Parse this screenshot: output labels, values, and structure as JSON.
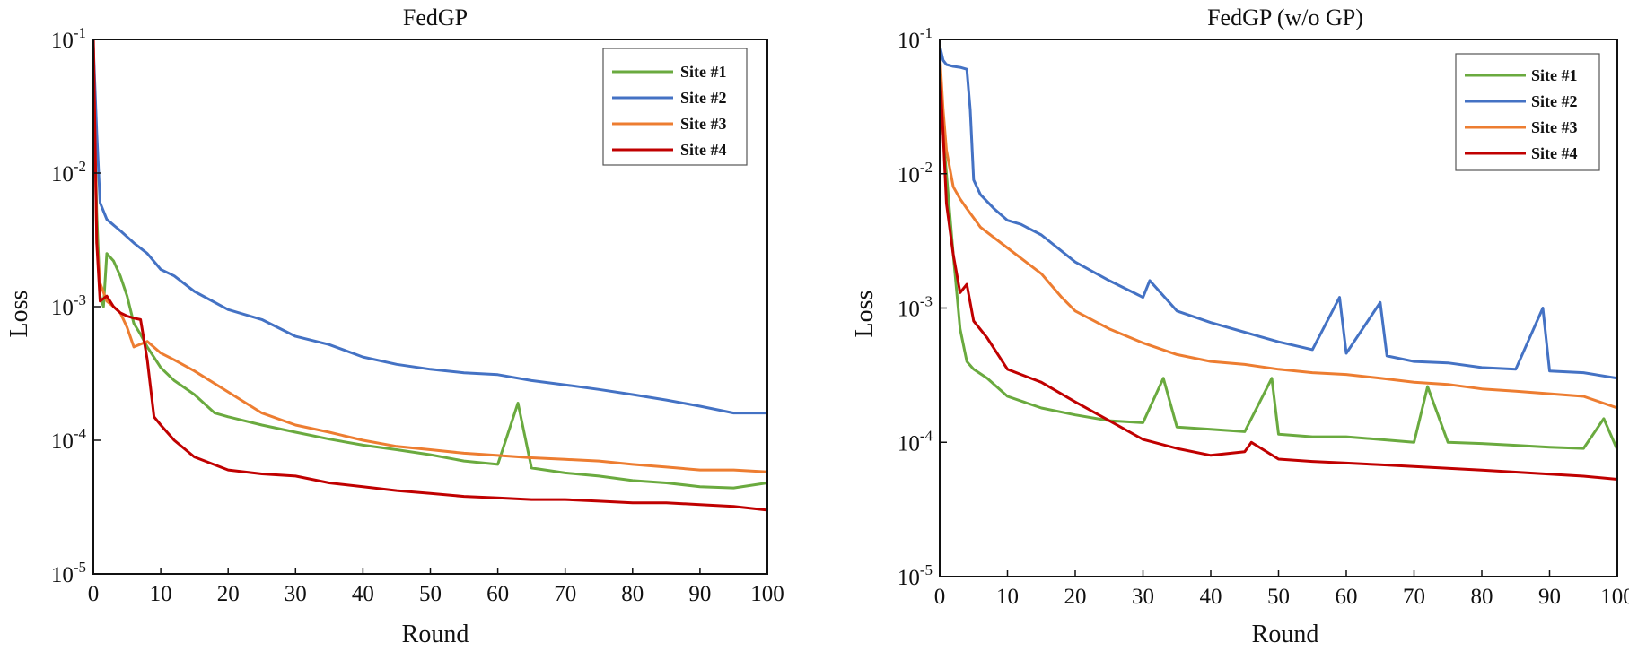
{
  "chart_data": [
    {
      "type": "line",
      "title": "FedGP",
      "xlabel": "Round",
      "ylabel": "Loss",
      "y_scale": "log",
      "xlim": [
        0,
        100
      ],
      "ylim": [
        1e-05,
        0.1
      ],
      "x_ticks": [
        "0",
        "10",
        "20",
        "30",
        "40",
        "50",
        "60",
        "70",
        "80",
        "90",
        "100"
      ],
      "y_ticks": [
        {
          "base": "10",
          "exp": "-1"
        },
        {
          "base": "10",
          "exp": "-2"
        },
        {
          "base": "10",
          "exp": "-3"
        },
        {
          "base": "10",
          "exp": "-4"
        },
        {
          "base": "10",
          "exp": "-5"
        }
      ],
      "legend_position": "top-right",
      "grid": false,
      "series": [
        {
          "name": "Site #1",
          "color": "#6aaa3f",
          "points": [
            [
              0,
              0.06
            ],
            [
              0.5,
              0.005
            ],
            [
              1,
              0.0012
            ],
            [
              1.5,
              0.001
            ],
            [
              2,
              0.0025
            ],
            [
              3,
              0.0022
            ],
            [
              4,
              0.0017
            ],
            [
              5,
              0.0012
            ],
            [
              6,
              0.00075
            ],
            [
              7,
              0.00062
            ],
            [
              8,
              0.0005
            ],
            [
              10,
              0.00035
            ],
            [
              12,
              0.00028
            ],
            [
              15,
              0.00022
            ],
            [
              18,
              0.00016
            ],
            [
              20,
              0.00015
            ],
            [
              25,
              0.00013
            ],
            [
              30,
              0.000115
            ],
            [
              35,
              0.000102
            ],
            [
              40,
              9.2e-05
            ],
            [
              45,
              8.5e-05
            ],
            [
              50,
              7.8e-05
            ],
            [
              55,
              7e-05
            ],
            [
              60,
              6.6e-05
            ],
            [
              63,
              0.00019
            ],
            [
              65,
              6.2e-05
            ],
            [
              70,
              5.7e-05
            ],
            [
              75,
              5.4e-05
            ],
            [
              80,
              5e-05
            ],
            [
              85,
              4.8e-05
            ],
            [
              90,
              4.5e-05
            ],
            [
              95,
              4.4e-05
            ],
            [
              100,
              4.8e-05
            ]
          ]
        },
        {
          "name": "Site #2",
          "color": "#4472c4",
          "points": [
            [
              0,
              0.09
            ],
            [
              0.5,
              0.02
            ],
            [
              1,
              0.006
            ],
            [
              2,
              0.0045
            ],
            [
              4,
              0.0037
            ],
            [
              6,
              0.003
            ],
            [
              8,
              0.0025
            ],
            [
              10,
              0.0019
            ],
            [
              12,
              0.0017
            ],
            [
              15,
              0.0013
            ],
            [
              20,
              0.00095
            ],
            [
              25,
              0.0008
            ],
            [
              30,
              0.0006
            ],
            [
              35,
              0.00052
            ],
            [
              40,
              0.00042
            ],
            [
              45,
              0.00037
            ],
            [
              50,
              0.00034
            ],
            [
              55,
              0.00032
            ],
            [
              60,
              0.00031
            ],
            [
              65,
              0.00028
            ],
            [
              70,
              0.00026
            ],
            [
              75,
              0.00024
            ],
            [
              80,
              0.00022
            ],
            [
              85,
              0.0002
            ],
            [
              90,
              0.00018
            ],
            [
              95,
              0.00016
            ],
            [
              100,
              0.00016
            ]
          ]
        },
        {
          "name": "Site #3",
          "color": "#ed7d31",
          "points": [
            [
              0,
              0.09
            ],
            [
              0.5,
              0.003
            ],
            [
              1,
              0.0015
            ],
            [
              2,
              0.0011
            ],
            [
              3,
              0.001
            ],
            [
              4,
              0.0009
            ],
            [
              5,
              0.0007
            ],
            [
              6,
              0.0005
            ],
            [
              8,
              0.00055
            ],
            [
              10,
              0.00045
            ],
            [
              12,
              0.0004
            ],
            [
              15,
              0.00033
            ],
            [
              20,
              0.00023
            ],
            [
              25,
              0.00016
            ],
            [
              30,
              0.00013
            ],
            [
              35,
              0.000115
            ],
            [
              40,
              0.0001
            ],
            [
              45,
              9e-05
            ],
            [
              50,
              8.5e-05
            ],
            [
              55,
              8e-05
            ],
            [
              60,
              7.7e-05
            ],
            [
              65,
              7.4e-05
            ],
            [
              70,
              7.2e-05
            ],
            [
              75,
              7e-05
            ],
            [
              80,
              6.6e-05
            ],
            [
              85,
              6.3e-05
            ],
            [
              90,
              6e-05
            ],
            [
              95,
              6e-05
            ],
            [
              100,
              5.8e-05
            ]
          ]
        },
        {
          "name": "Site #4",
          "color": "#c00000",
          "points": [
            [
              0,
              0.11
            ],
            [
              0.5,
              0.003
            ],
            [
              1,
              0.0011
            ],
            [
              2,
              0.0012
            ],
            [
              3,
              0.001
            ],
            [
              4,
              0.0009
            ],
            [
              5,
              0.00085
            ],
            [
              6,
              0.00082
            ],
            [
              7,
              0.0008
            ],
            [
              8,
              0.0004
            ],
            [
              9,
              0.00015
            ],
            [
              10,
              0.00013
            ],
            [
              12,
              0.0001
            ],
            [
              15,
              7.5e-05
            ],
            [
              20,
              6e-05
            ],
            [
              25,
              5.6e-05
            ],
            [
              30,
              5.4e-05
            ],
            [
              35,
              4.8e-05
            ],
            [
              40,
              4.5e-05
            ],
            [
              45,
              4.2e-05
            ],
            [
              50,
              4e-05
            ],
            [
              55,
              3.8e-05
            ],
            [
              60,
              3.7e-05
            ],
            [
              65,
              3.6e-05
            ],
            [
              70,
              3.6e-05
            ],
            [
              75,
              3.5e-05
            ],
            [
              80,
              3.4e-05
            ],
            [
              85,
              3.4e-05
            ],
            [
              90,
              3.3e-05
            ],
            [
              95,
              3.2e-05
            ],
            [
              100,
              3e-05
            ]
          ]
        }
      ]
    },
    {
      "type": "line",
      "title": "FedGP (w/o GP)",
      "xlabel": "Round",
      "ylabel": "Loss",
      "y_scale": "log",
      "xlim": [
        0,
        100
      ],
      "ylim": [
        1e-05,
        0.1
      ],
      "x_ticks": [
        "0",
        "10",
        "20",
        "30",
        "40",
        "50",
        "60",
        "70",
        "80",
        "90",
        "100"
      ],
      "y_ticks": [
        {
          "base": "10",
          "exp": "-1"
        },
        {
          "base": "10",
          "exp": "-2"
        },
        {
          "base": "10",
          "exp": "-3"
        },
        {
          "base": "10",
          "exp": "-4"
        },
        {
          "base": "10",
          "exp": "-5"
        }
      ],
      "legend_position": "top-right",
      "grid": false,
      "series": [
        {
          "name": "Site #1",
          "color": "#6aaa3f",
          "points": [
            [
              0,
              0.08
            ],
            [
              0.5,
              0.02
            ],
            [
              1,
              0.01
            ],
            [
              2,
              0.0025
            ],
            [
              3,
              0.0007
            ],
            [
              4,
              0.0004
            ],
            [
              5,
              0.00035
            ],
            [
              7,
              0.0003
            ],
            [
              10,
              0.00022
            ],
            [
              15,
              0.00018
            ],
            [
              20,
              0.00016
            ],
            [
              25,
              0.000145
            ],
            [
              30,
              0.00014
            ],
            [
              33,
              0.0003
            ],
            [
              35,
              0.00013
            ],
            [
              40,
              0.000125
            ],
            [
              45,
              0.00012
            ],
            [
              49,
              0.0003
            ],
            [
              50,
              0.000115
            ],
            [
              55,
              0.00011
            ],
            [
              60,
              0.00011
            ],
            [
              65,
              0.000105
            ],
            [
              70,
              0.0001
            ],
            [
              72,
              0.00026
            ],
            [
              75,
              0.0001
            ],
            [
              80,
              9.8e-05
            ],
            [
              85,
              9.5e-05
            ],
            [
              90,
              9.2e-05
            ],
            [
              95,
              9e-05
            ],
            [
              98,
              0.00015
            ],
            [
              100,
              8.8e-05
            ]
          ]
        },
        {
          "name": "Site #2",
          "color": "#4472c4",
          "points": [
            [
              0,
              0.09
            ],
            [
              0.5,
              0.07
            ],
            [
              1,
              0.065
            ],
            [
              2,
              0.063
            ],
            [
              3,
              0.062
            ],
            [
              4,
              0.06
            ],
            [
              4.5,
              0.03
            ],
            [
              5,
              0.009
            ],
            [
              6,
              0.007
            ],
            [
              8,
              0.0055
            ],
            [
              10,
              0.0045
            ],
            [
              12,
              0.0042
            ],
            [
              15,
              0.0035
            ],
            [
              20,
              0.0022
            ],
            [
              25,
              0.0016
            ],
            [
              30,
              0.0012
            ],
            [
              31,
              0.0016
            ],
            [
              35,
              0.00095
            ],
            [
              40,
              0.00078
            ],
            [
              45,
              0.00066
            ],
            [
              50,
              0.00056
            ],
            [
              55,
              0.00049
            ],
            [
              59,
              0.0012
            ],
            [
              60,
              0.00046
            ],
            [
              65,
              0.0011
            ],
            [
              66,
              0.00044
            ],
            [
              70,
              0.0004
            ],
            [
              75,
              0.00039
            ],
            [
              80,
              0.00036
            ],
            [
              85,
              0.00035
            ],
            [
              89,
              0.001
            ],
            [
              90,
              0.00034
            ],
            [
              95,
              0.00033
            ],
            [
              100,
              0.0003
            ]
          ]
        },
        {
          "name": "Site #3",
          "color": "#ed7d31",
          "points": [
            [
              0,
              0.08
            ],
            [
              0.5,
              0.03
            ],
            [
              1,
              0.015
            ],
            [
              2,
              0.008
            ],
            [
              3,
              0.0065
            ],
            [
              4,
              0.0055
            ],
            [
              6,
              0.004
            ],
            [
              10,
              0.0028
            ],
            [
              15,
              0.0018
            ],
            [
              18,
              0.0012
            ],
            [
              20,
              0.00095
            ],
            [
              25,
              0.0007
            ],
            [
              30,
              0.00055
            ],
            [
              35,
              0.00045
            ],
            [
              40,
              0.0004
            ],
            [
              45,
              0.00038
            ],
            [
              50,
              0.00035
            ],
            [
              55,
              0.00033
            ],
            [
              60,
              0.00032
            ],
            [
              65,
              0.0003
            ],
            [
              70,
              0.00028
            ],
            [
              75,
              0.00027
            ],
            [
              80,
              0.00025
            ],
            [
              85,
              0.00024
            ],
            [
              90,
              0.00023
            ],
            [
              95,
              0.00022
            ],
            [
              100,
              0.00018
            ]
          ]
        },
        {
          "name": "Site #4",
          "color": "#c00000",
          "points": [
            [
              0,
              0.06
            ],
            [
              0.5,
              0.02
            ],
            [
              1,
              0.006
            ],
            [
              2,
              0.0025
            ],
            [
              3,
              0.0013
            ],
            [
              4,
              0.0015
            ],
            [
              5,
              0.0008
            ],
            [
              7,
              0.0006
            ],
            [
              10,
              0.00035
            ],
            [
              12,
              0.00032
            ],
            [
              15,
              0.00028
            ],
            [
              20,
              0.0002
            ],
            [
              25,
              0.000145
            ],
            [
              30,
              0.000105
            ],
            [
              35,
              9e-05
            ],
            [
              40,
              8e-05
            ],
            [
              45,
              8.5e-05
            ],
            [
              46,
              0.0001
            ],
            [
              50,
              7.5e-05
            ],
            [
              55,
              7.2e-05
            ],
            [
              60,
              7e-05
            ],
            [
              65,
              6.8e-05
            ],
            [
              70,
              6.6e-05
            ],
            [
              75,
              6.4e-05
            ],
            [
              80,
              6.2e-05
            ],
            [
              85,
              6e-05
            ],
            [
              90,
              5.8e-05
            ],
            [
              95,
              5.6e-05
            ],
            [
              100,
              5.3e-05
            ]
          ]
        }
      ]
    }
  ]
}
